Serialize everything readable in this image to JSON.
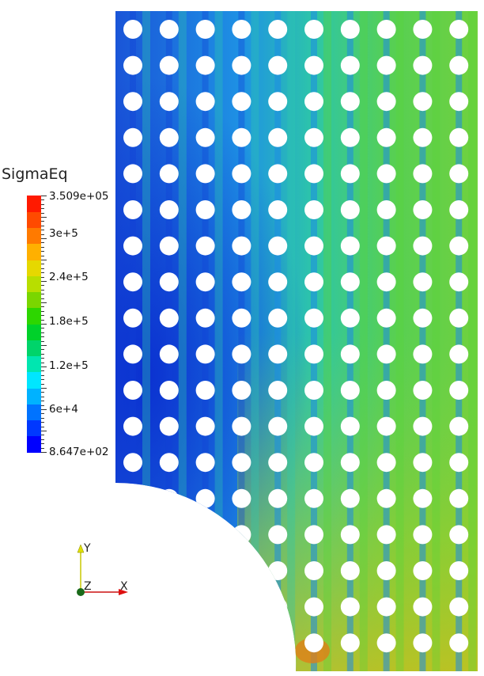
{
  "legend": {
    "title": "SigmaEq",
    "max_label": "3.509e+05",
    "min_label": "8.647e+02",
    "tick_labels": [
      "3e+5",
      "2.4e+5",
      "1.8e+5",
      "1.2e+5",
      "6e+4"
    ],
    "tick_values": [
      300000,
      240000,
      180000,
      120000,
      60000
    ],
    "range": [
      864.7,
      350900
    ],
    "colors": [
      "#0000ff",
      "#0038ff",
      "#0073ff",
      "#00b2ff",
      "#00e6ff",
      "#00e6b0",
      "#00d46a",
      "#00d12a",
      "#2dd600",
      "#7ad600",
      "#b8de00",
      "#e6d800",
      "#ffb000",
      "#ff7a00",
      "#ff4a00",
      "#ff1a00"
    ]
  },
  "axes": {
    "y_label": "Y",
    "z_label": "Z",
    "x_label": "X"
  },
  "field": {
    "hole_grid_columns": 10,
    "hole_grid_rows": 18,
    "palette": {
      "low": "#1240d8",
      "lowmid": "#1e8be6",
      "mid": "#2fc9b0",
      "midhigh": "#5ad43a",
      "high": "#b8cc1a",
      "peak": "#e08018"
    }
  }
}
